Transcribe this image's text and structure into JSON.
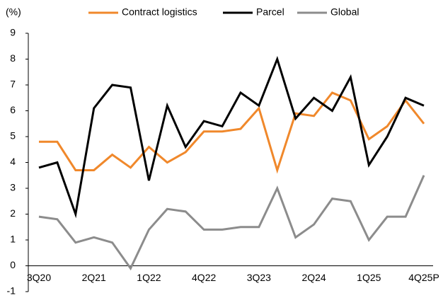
{
  "chart_data": {
    "type": "line",
    "y_unit_label": "(%)",
    "categories": [
      "3Q20",
      null,
      null,
      "2Q21",
      null,
      null,
      "1Q22",
      null,
      null,
      "4Q22",
      null,
      null,
      "3Q23",
      null,
      null,
      "2Q24",
      null,
      null,
      "1Q25",
      null,
      null,
      "4Q25P"
    ],
    "series": [
      {
        "name": "Contract logistics",
        "color": "#f0882b",
        "values": [
          4.8,
          4.8,
          3.7,
          3.7,
          4.3,
          3.8,
          4.6,
          4.0,
          4.4,
          5.2,
          5.2,
          5.3,
          6.1,
          3.7,
          5.9,
          5.8,
          6.7,
          6.4,
          4.9,
          5.4,
          6.4,
          5.5
        ]
      },
      {
        "name": "Parcel",
        "color": "#000000",
        "values": [
          3.8,
          4.0,
          2.0,
          6.1,
          7.0,
          6.9,
          3.3,
          6.2,
          4.6,
          5.6,
          5.4,
          6.7,
          6.2,
          8.0,
          5.7,
          6.5,
          6.0,
          7.3,
          3.9,
          5.0,
          6.5,
          6.2
        ]
      },
      {
        "name": "Global",
        "color": "#8c8c8c",
        "values": [
          1.9,
          1.8,
          0.9,
          1.1,
          0.9,
          -0.1,
          1.4,
          2.2,
          2.1,
          1.4,
          1.4,
          1.5,
          1.5,
          3.0,
          1.1,
          1.6,
          2.6,
          2.5,
          1.0,
          1.9,
          1.9,
          3.5
        ]
      }
    ],
    "ylim": [
      -1,
      9
    ],
    "yticks": [
      -1,
      0,
      1,
      2,
      3,
      4,
      5,
      6,
      7,
      8,
      9
    ],
    "grid": false,
    "legend": "top"
  }
}
